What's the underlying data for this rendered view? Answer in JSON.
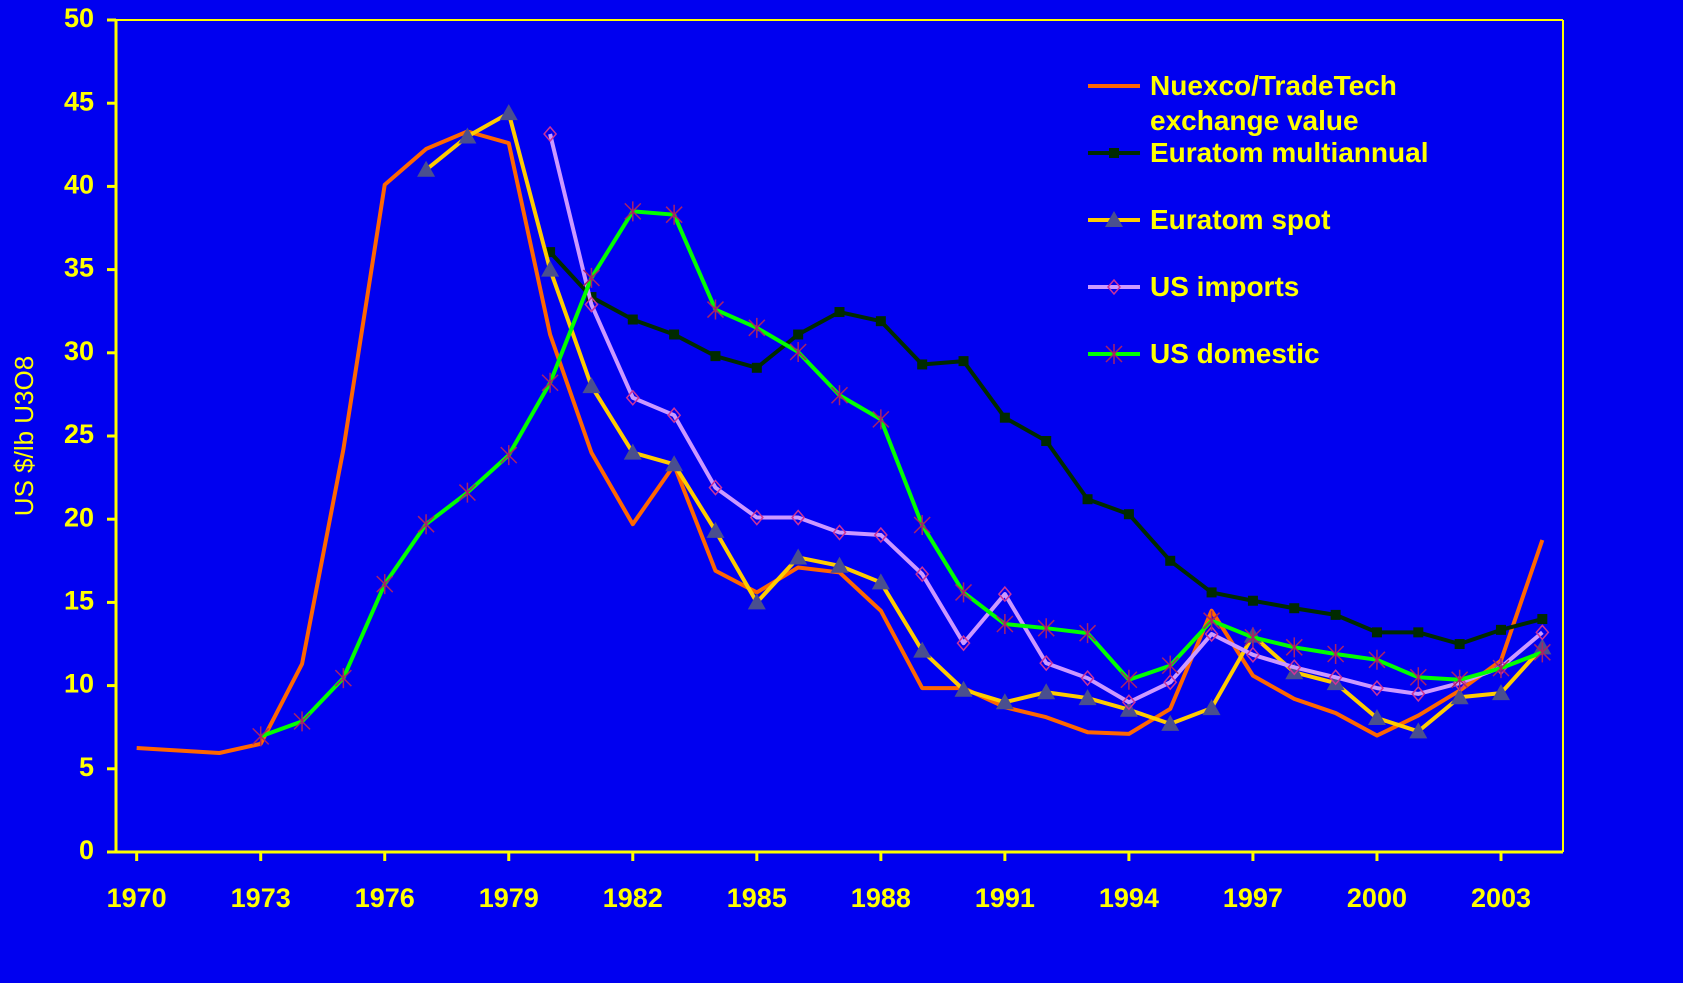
{
  "chart_data": {
    "type": "line",
    "y_label": "US $/lb U3O8",
    "x": [
      1970,
      1971,
      1972,
      1973,
      1974,
      1975,
      1976,
      1977,
      1978,
      1979,
      1980,
      1981,
      1982,
      1983,
      1984,
      1985,
      1986,
      1987,
      1988,
      1989,
      1990,
      1991,
      1992,
      1993,
      1994,
      1995,
      1996,
      1997,
      1998,
      1999,
      2000,
      2001,
      2002,
      2003,
      2004
    ],
    "xlim": [
      1969.5,
      2004.5
    ],
    "xticks": [
      1970,
      1973,
      1976,
      1979,
      1982,
      1985,
      1988,
      1991,
      1994,
      1997,
      2000,
      2003
    ],
    "ylim": [
      0,
      50
    ],
    "yticks": [
      0,
      5,
      10,
      15,
      20,
      25,
      30,
      35,
      40,
      45,
      50
    ],
    "legend": "upper right",
    "series": [
      {
        "name": "Nuexco/TradeTech exchange value",
        "color": "#ff6600",
        "marker": "none",
        "values": [
          6.25,
          6.1,
          5.95,
          6.5,
          11.3,
          24.2,
          40.1,
          42.25,
          43.3,
          42.6,
          31.1,
          24.0,
          19.7,
          23.25,
          16.9,
          15.6,
          17.1,
          16.8,
          14.5,
          9.85,
          9.85,
          8.7,
          8.1,
          7.2,
          7.1,
          8.6,
          14.5,
          10.6,
          9.2,
          8.35,
          7.0,
          8.2,
          9.7,
          11.5,
          18.75
        ]
      },
      {
        "name": "Euratom multiannual",
        "color": "#002a00",
        "marker": "square",
        "marker_color": "#002a00",
        "values": [
          null,
          null,
          null,
          null,
          null,
          null,
          null,
          null,
          null,
          null,
          36.05,
          33.35,
          32.0,
          31.1,
          29.8,
          29.1,
          31.1,
          32.45,
          31.9,
          29.3,
          29.5,
          26.1,
          24.7,
          21.2,
          20.3,
          17.5,
          15.6,
          15.1,
          14.65,
          14.25,
          13.2,
          13.2,
          12.5,
          13.35,
          14.0
        ]
      },
      {
        "name": "Euratom spot",
        "color": "#ffcc00",
        "marker": "triangle",
        "marker_color": "#4a4f8f",
        "values": [
          null,
          null,
          null,
          null,
          null,
          null,
          null,
          41.0,
          43.0,
          44.4,
          35.0,
          28.0,
          24.0,
          23.3,
          19.3,
          15.0,
          17.7,
          17.2,
          16.2,
          12.1,
          9.75,
          9.0,
          9.6,
          9.25,
          8.55,
          7.7,
          8.65,
          13.0,
          10.8,
          10.15,
          8.05,
          7.25,
          9.3,
          9.55,
          12.3
        ]
      },
      {
        "name": "US imports",
        "color": "#cc99ff",
        "marker": "diamond",
        "marker_color": "#cc3399",
        "values": [
          null,
          null,
          null,
          null,
          null,
          null,
          null,
          null,
          null,
          null,
          43.15,
          32.9,
          27.3,
          26.25,
          21.9,
          20.1,
          20.1,
          19.2,
          19.05,
          16.7,
          12.55,
          15.5,
          11.35,
          10.45,
          9.0,
          10.2,
          13.1,
          11.85,
          11.1,
          10.5,
          9.85,
          9.5,
          10.15,
          11.1,
          13.2
        ]
      },
      {
        "name": "US domestic",
        "color": "#00ff00",
        "marker": "star",
        "marker_color": "#aa2266",
        "values": [
          null,
          null,
          null,
          6.95,
          7.85,
          10.45,
          16.1,
          19.7,
          21.6,
          23.85,
          28.2,
          34.5,
          38.5,
          38.3,
          32.6,
          31.5,
          30.05,
          27.45,
          26.0,
          19.65,
          15.6,
          13.7,
          13.45,
          13.15,
          10.35,
          11.2,
          13.9,
          12.9,
          12.3,
          11.9,
          11.55,
          10.5,
          10.35,
          11.05,
          12.0
        ]
      }
    ]
  }
}
